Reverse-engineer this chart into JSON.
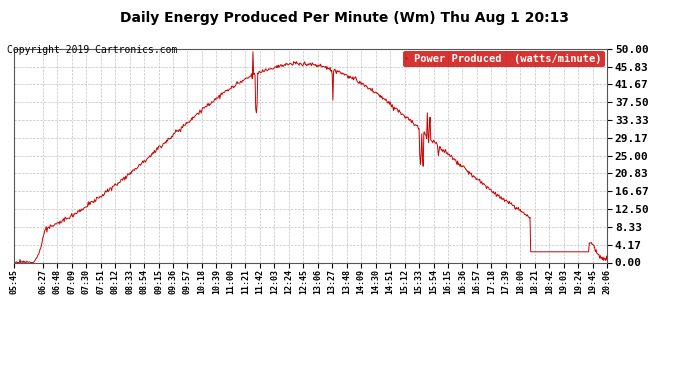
{
  "title": "Daily Energy Produced Per Minute (Wm) Thu Aug 1 20:13",
  "copyright": "Copyright 2019 Cartronics.com",
  "legend_label": "Power Produced  (watts/minute)",
  "line_color": "#cc0000",
  "legend_bg": "#cc0000",
  "legend_text_color": "#ffffff",
  "background_color": "#ffffff",
  "grid_color": "#bbbbbb",
  "ylim": [
    0,
    50
  ],
  "yticks": [
    0.0,
    4.17,
    8.33,
    12.5,
    16.67,
    20.83,
    25.0,
    29.17,
    33.33,
    37.5,
    41.67,
    45.83,
    50.0
  ],
  "ytick_labels": [
    "0.00",
    "4.17",
    "8.33",
    "12.50",
    "16.67",
    "20.83",
    "25.00",
    "29.17",
    "33.33",
    "37.50",
    "41.67",
    "45.83",
    "50.00"
  ],
  "x_tick_labels": [
    "05:45",
    "06:27",
    "06:48",
    "07:09",
    "07:30",
    "07:51",
    "08:12",
    "08:33",
    "08:54",
    "09:15",
    "09:36",
    "09:57",
    "10:18",
    "10:39",
    "11:00",
    "11:21",
    "11:42",
    "12:03",
    "12:24",
    "12:45",
    "13:06",
    "13:27",
    "13:48",
    "14:09",
    "14:30",
    "14:51",
    "15:12",
    "15:33",
    "15:54",
    "16:15",
    "16:36",
    "16:57",
    "17:18",
    "17:39",
    "18:00",
    "18:21",
    "18:42",
    "19:03",
    "19:24",
    "19:45",
    "20:06"
  ],
  "title_fontsize": 10,
  "copyright_fontsize": 7,
  "ytick_fontsize": 8,
  "xtick_fontsize": 6,
  "legend_fontsize": 7.5
}
